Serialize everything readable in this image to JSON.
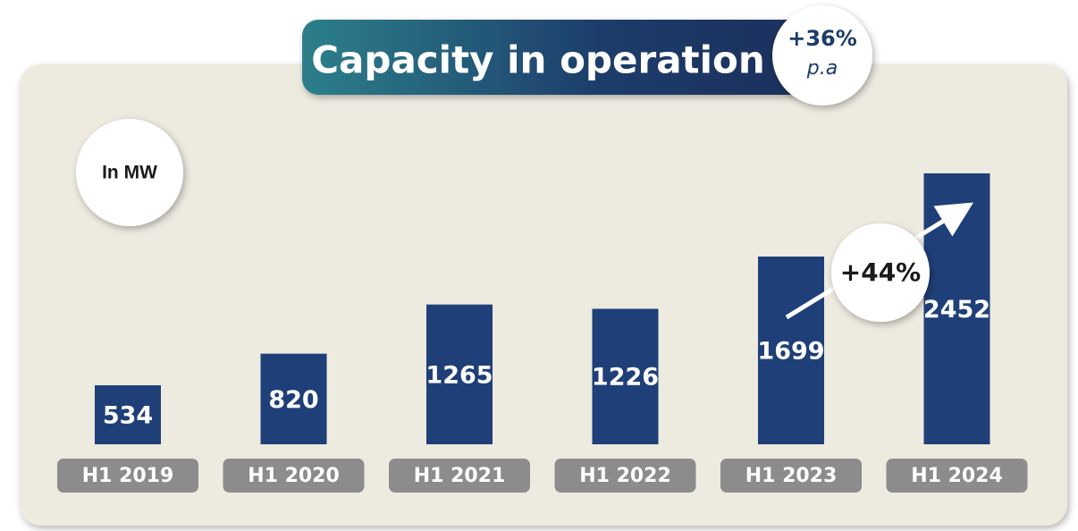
{
  "chart_data": {
    "type": "bar",
    "title": "Capacity in operation",
    "annotations": {
      "growth_total": "+36%",
      "growth_period": "p.a",
      "unit": "In MW",
      "growth_last": "+44%"
    },
    "categories": [
      "H1 2019",
      "H1 2020",
      "H1 2021",
      "H1 2022",
      "H1 2023",
      "H1 2024"
    ],
    "values": [
      534,
      820,
      1265,
      1226,
      1699,
      2452
    ],
    "color": "#1f3f78",
    "ylim": [
      0,
      2500
    ]
  }
}
